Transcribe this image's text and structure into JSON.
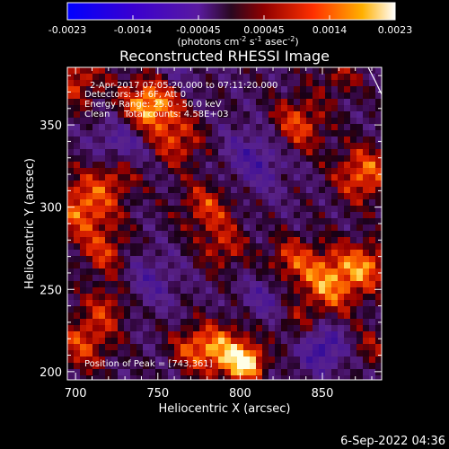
{
  "chart_data": {
    "type": "heatmap",
    "title": "Reconstructed RHESSI Image",
    "xlabel": "Heliocentric X (arcsec)",
    "ylabel": "Heliocentric Y (arcsec)",
    "xlim": [
      695,
      886
    ],
    "ylim": [
      195,
      385
    ],
    "x_ticks": [
      700,
      750,
      800,
      850
    ],
    "y_ticks": [
      200,
      250,
      300,
      350
    ],
    "colorbar": {
      "ticks": [
        "-0.0023",
        "-0.0014",
        "-0.00045",
        "0.00045",
        "0.0014",
        "0.0023"
      ],
      "units_text": "(photons cm",
      "units_sup1": "-2",
      "units_mid1": " s",
      "units_sup2": "-1",
      "units_mid2": " asec",
      "units_sup3": "-2",
      "units_end": ")",
      "range": [
        -0.0023,
        0.0023
      ]
    },
    "annotations": [
      "2-Apr-2017 07:05:20.000 to 07:11:20.000",
      "Detectors: 3F 6F, Att 0",
      "Energy Range: 25.0 - 50.0 keV",
      "Clean     Total counts: 4.58E+03"
    ],
    "peak_label": "Position of Peak = [743,361]",
    "peak": {
      "x": 743,
      "y": 361
    },
    "blobs": [
      {
        "x": 745,
        "y": 362,
        "amp": 1.0,
        "r": 12
      },
      {
        "x": 700,
        "y": 378,
        "amp": 0.55,
        "r": 12
      },
      {
        "x": 762,
        "y": 340,
        "amp": 0.55,
        "r": 11
      },
      {
        "x": 705,
        "y": 300,
        "amp": 0.75,
        "r": 14
      },
      {
        "x": 725,
        "y": 320,
        "amp": 0.5,
        "r": 10
      },
      {
        "x": 718,
        "y": 272,
        "amp": 0.5,
        "r": 10
      },
      {
        "x": 780,
        "y": 300,
        "amp": 0.55,
        "r": 12
      },
      {
        "x": 790,
        "y": 275,
        "amp": 0.45,
        "r": 10
      },
      {
        "x": 835,
        "y": 350,
        "amp": 0.65,
        "r": 12
      },
      {
        "x": 875,
        "y": 320,
        "amp": 0.75,
        "r": 12
      },
      {
        "x": 855,
        "y": 255,
        "amp": 0.85,
        "r": 14
      },
      {
        "x": 878,
        "y": 265,
        "amp": 0.6,
        "r": 10
      },
      {
        "x": 830,
        "y": 268,
        "amp": 0.5,
        "r": 10
      },
      {
        "x": 790,
        "y": 212,
        "amp": 0.85,
        "r": 12
      },
      {
        "x": 805,
        "y": 205,
        "amp": 0.95,
        "r": 7
      },
      {
        "x": 770,
        "y": 215,
        "amp": 0.5,
        "r": 9
      },
      {
        "x": 705,
        "y": 218,
        "amp": 0.6,
        "r": 12
      },
      {
        "x": 720,
        "y": 240,
        "amp": 0.45,
        "r": 10
      },
      {
        "x": 880,
        "y": 215,
        "amp": 0.35,
        "r": 9
      },
      {
        "x": 860,
        "y": 380,
        "amp": 0.35,
        "r": 10
      },
      {
        "x": 835,
        "y": 228,
        "amp": 0.3,
        "r": 9
      },
      {
        "x": 728,
        "y": 338,
        "amp": -0.5,
        "r": 12
      },
      {
        "x": 810,
        "y": 330,
        "amp": -0.45,
        "r": 14
      },
      {
        "x": 850,
        "y": 215,
        "amp": -0.65,
        "r": 10
      },
      {
        "x": 745,
        "y": 255,
        "amp": -0.35,
        "r": 12
      },
      {
        "x": 815,
        "y": 245,
        "amp": -0.35,
        "r": 10
      },
      {
        "x": 760,
        "y": 385,
        "amp": -0.3,
        "r": 10
      }
    ],
    "limb_arc": true
  },
  "footer": {
    "date": "6-Sep-2022 04:36"
  }
}
